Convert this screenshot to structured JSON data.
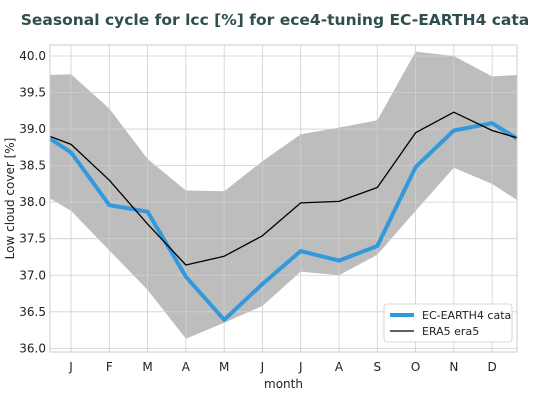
{
  "chart_data": {
    "type": "line",
    "title": "Seasonal cycle for lcc [%] for ece4-tuning EC-EARTH4 cata",
    "xlabel": "month",
    "ylabel": "Low cloud cover [%]",
    "categories": [
      "J",
      "F",
      "M",
      "A",
      "M",
      "J",
      "J",
      "A",
      "S",
      "O",
      "N",
      "D"
    ],
    "x_offset_note": "",
    "ylim": [
      35.95,
      40.15
    ],
    "yticks": [
      "36.0",
      "36.5",
      "37.0",
      "37.5",
      "38.0",
      "38.5",
      "39.0",
      "39.5",
      "40.0"
    ],
    "grid": true,
    "legend_position": "lower-right",
    "start_value": {
      "ec_earth4": 38.87,
      "era5": 38.9,
      "band_low": 38.05,
      "band_high": 39.74
    },
    "series": [
      {
        "name": "EC-EARTH4 cata",
        "color": "#3399dd",
        "values": [
          38.68,
          37.96,
          37.87,
          36.98,
          36.39,
          36.88,
          37.33,
          37.2,
          37.4,
          38.48,
          38.98,
          39.08
        ],
        "end_value": 38.87
      },
      {
        "name": "ERA5 era5",
        "color": "#000000",
        "values": [
          38.79,
          38.3,
          37.7,
          37.14,
          37.26,
          37.54,
          37.99,
          38.01,
          38.2,
          38.95,
          39.23,
          38.98
        ],
        "end_value": 38.88
      }
    ],
    "band": {
      "color": "#bdbdbd",
      "low": [
        37.88,
        37.34,
        36.8,
        36.13,
        36.35,
        36.58,
        37.05,
        37.0,
        37.28,
        37.88,
        38.47,
        38.25
      ],
      "high": [
        39.75,
        39.28,
        38.59,
        38.16,
        38.15,
        38.56,
        38.93,
        39.02,
        39.12,
        40.06,
        40.0,
        39.72
      ],
      "end_low": 38.03,
      "end_high": 39.74
    }
  }
}
